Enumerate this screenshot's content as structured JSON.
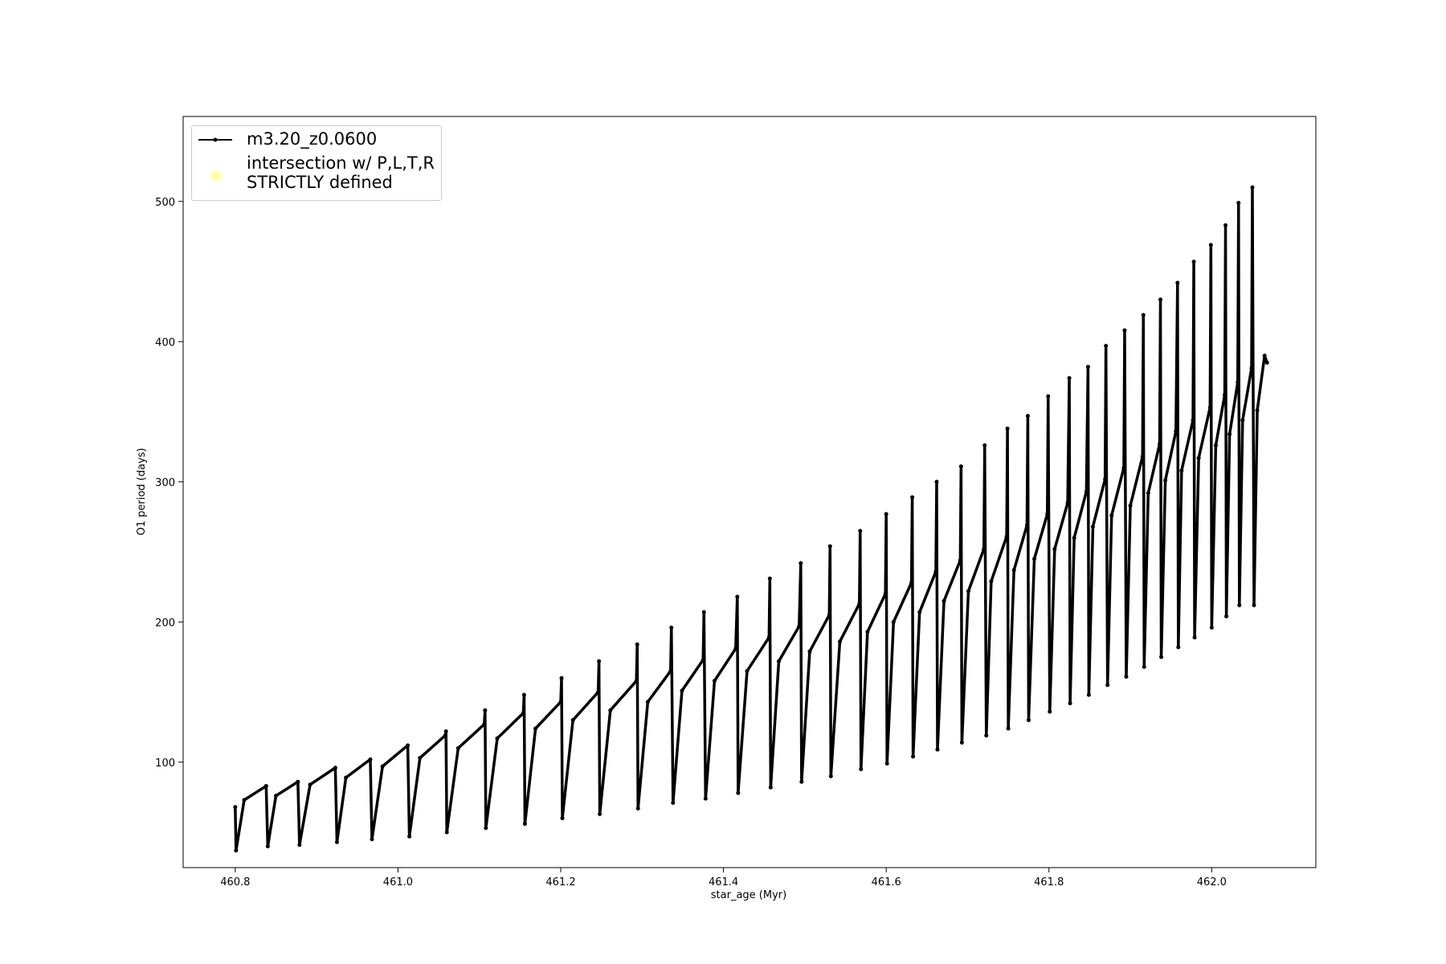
{
  "chart_data": {
    "type": "line",
    "xlabel": "star_age (Myr)",
    "ylabel": "O1 period (days)",
    "xlim": [
      460.736,
      462.128
    ],
    "ylim": [
      24.8,
      560.6
    ],
    "xticks": [
      460.8,
      {
        "value": 461,
        "label": "461.0"
      },
      461.2,
      461.4,
      461.6,
      461.8,
      {
        "value": 462,
        "label": "462.0"
      }
    ],
    "yticks": [
      100,
      200,
      300,
      400,
      500
    ],
    "grid": false,
    "legend": "upper left",
    "series": [
      {
        "name": "m3.20_z0.0600",
        "color": "#000000",
        "x": [
          460.8,
          460.801,
          460.811,
          460.838,
          460.84,
          460.85,
          460.877,
          460.879,
          460.892,
          460.923,
          460.925,
          460.936,
          460.966,
          460.968,
          460.981,
          461.012,
          461.014,
          461.027,
          461.058,
          461.059,
          461.06,
          461.074,
          461.106,
          461.107,
          461.108,
          461.122,
          461.154,
          461.155,
          461.156,
          461.169,
          461.2,
          461.201,
          461.202,
          461.215,
          461.246,
          461.247,
          461.248,
          461.261,
          461.293,
          461.294,
          461.295,
          461.307,
          461.335,
          461.336,
          461.338,
          461.349,
          461.375,
          461.376,
          461.378,
          461.389,
          461.415,
          461.417,
          461.418,
          461.429,
          461.456,
          461.457,
          461.458,
          461.468,
          461.493,
          461.495,
          461.496,
          461.506,
          461.53,
          461.531,
          461.532,
          461.543,
          461.567,
          461.568,
          461.569,
          461.577,
          461.599,
          461.6,
          461.601,
          461.609,
          461.631,
          461.632,
          461.633,
          461.641,
          461.661,
          461.662,
          461.663,
          461.671,
          461.691,
          461.692,
          461.693,
          461.701,
          461.72,
          461.721,
          461.723,
          461.729,
          461.748,
          461.749,
          461.75,
          461.757,
          461.773,
          461.774,
          461.775,
          461.782,
          461.798,
          461.799,
          461.801,
          461.807,
          461.823,
          461.825,
          461.826,
          461.831,
          461.846,
          461.848,
          461.849,
          461.854,
          461.869,
          461.87,
          461.872,
          461.877,
          461.892,
          461.893,
          461.895,
          461.9,
          461.915,
          461.916,
          461.917,
          461.922,
          461.936,
          461.937,
          461.938,
          461.943,
          461.956,
          461.958,
          461.959,
          461.963,
          461.977,
          461.978,
          461.979,
          461.984,
          461.998,
          461.999,
          462.0,
          462.005,
          462.016,
          462.017,
          462.018,
          462.022,
          462.032,
          462.033,
          462.034,
          462.038,
          462.049,
          462.05,
          462.052,
          462.056,
          462.065,
          462.068
        ],
        "values": [
          68,
          37,
          73,
          83,
          40,
          76,
          86,
          41,
          84,
          96,
          43,
          89,
          102,
          45,
          97,
          112,
          47,
          103,
          119,
          122,
          50,
          110,
          127,
          137,
          53,
          117,
          135,
          148,
          56,
          124,
          143,
          160,
          60,
          130,
          150,
          172,
          63,
          137,
          158,
          184,
          67,
          143,
          165,
          196,
          71,
          151,
          173,
          207,
          74,
          158,
          181,
          218,
          78,
          165,
          189,
          231,
          82,
          172,
          197,
          242,
          86,
          179,
          205,
          254,
          90,
          186,
          213,
          265,
          95,
          193,
          220,
          277,
          99,
          200,
          228,
          289,
          104,
          207,
          236,
          300,
          109,
          215,
          244,
          311,
          114,
          222,
          252,
          326,
          119,
          229,
          261,
          338,
          124,
          237,
          269,
          347,
          130,
          245,
          277,
          361,
          136,
          252,
          285,
          374,
          142,
          260,
          293,
          382,
          148,
          268,
          302,
          397,
          155,
          276,
          310,
          408,
          161,
          283,
          318,
          419,
          168,
          292,
          327,
          430,
          175,
          301,
          336,
          442,
          182,
          308,
          344,
          457,
          189,
          317,
          353,
          469,
          196,
          326,
          362,
          483,
          204,
          334,
          371,
          499,
          212,
          344,
          381,
          510,
          212,
          351,
          390,
          385
        ]
      },
      {
        "name": "intersection w/ P,L,T,R\nSTRICTLY defined",
        "color": "#ffffb0",
        "x": [],
        "values": []
      }
    ]
  }
}
